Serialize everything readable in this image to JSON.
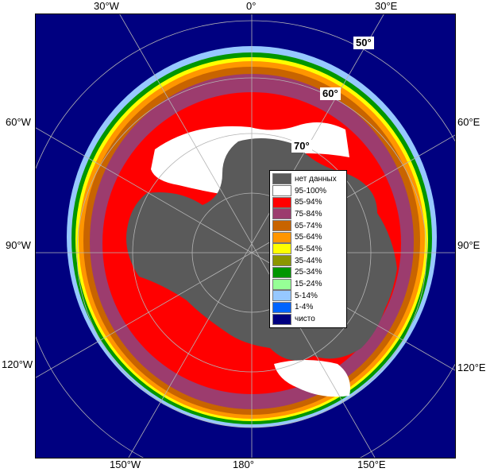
{
  "labels": {
    "lon": [
      "30°W",
      "0°",
      "30°E",
      "60°W",
      "60°E",
      "90°W",
      "90°E",
      "120°W",
      "120°E",
      "150°W",
      "180°",
      "150°E"
    ],
    "lat": [
      "50°",
      "60°",
      "70°"
    ]
  },
  "legend": {
    "items": [
      {
        "label": "нет данных",
        "color": "#5a5a5a"
      },
      {
        "label": "95-100%",
        "color": "#ffffff"
      },
      {
        "label": "85-94%",
        "color": "#ff0000"
      },
      {
        "label": "75-84%",
        "color": "#9c3c6e"
      },
      {
        "label": "65-74%",
        "color": "#c86400"
      },
      {
        "label": "55-64%",
        "color": "#ff9600"
      },
      {
        "label": "45-54%",
        "color": "#ffff00"
      },
      {
        "label": "35-44%",
        "color": "#8c9600"
      },
      {
        "label": "25-34%",
        "color": "#009600"
      },
      {
        "label": "15-24%",
        "color": "#96ff96"
      },
      {
        "label": "5-14%",
        "color": "#96c8ff"
      },
      {
        "label": "1-4%",
        "color": "#0064ff"
      },
      {
        "label": "чисто",
        "color": "#000080"
      }
    ]
  },
  "colors": {
    "ocean": "#000080",
    "land": "#5a5a5a",
    "grid": "#b4b4b4"
  }
}
